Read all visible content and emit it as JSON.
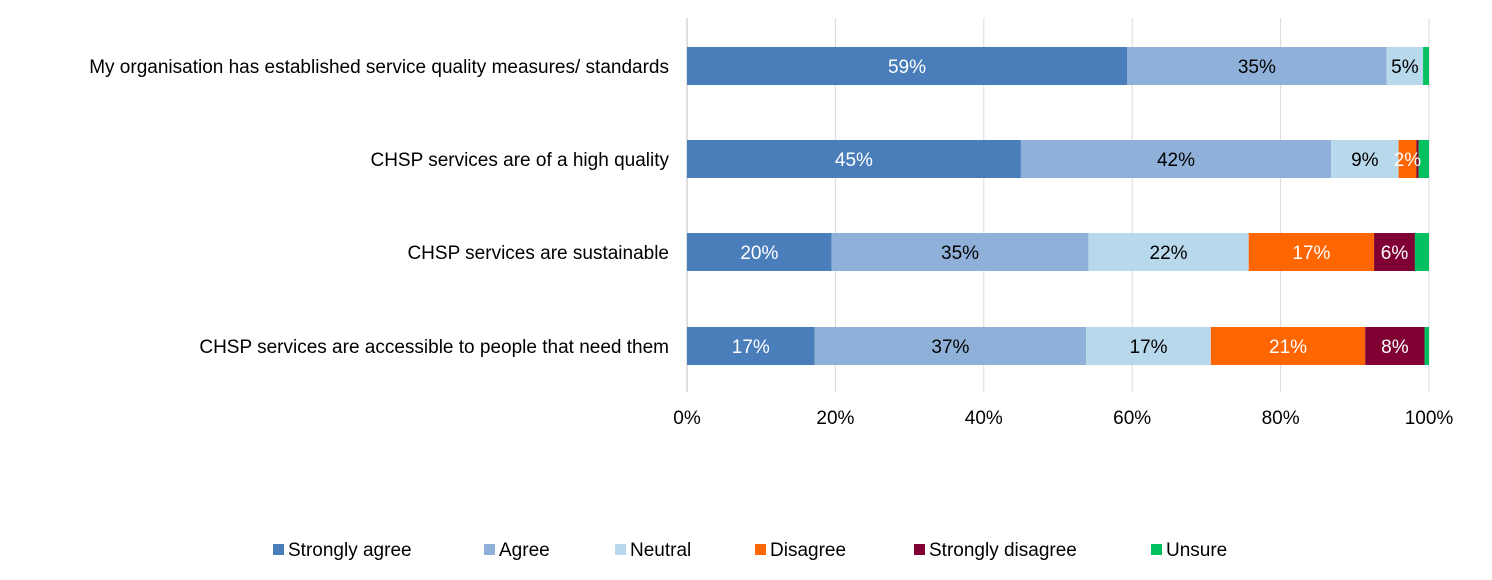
{
  "chart_data": {
    "type": "bar",
    "orientation": "horizontal",
    "stacked": true,
    "categories": [
      "My organisation has established service quality measures/ standards",
      "CHSP services are of a high quality",
      "CHSP services are sustainable",
      "CHSP services are accessible to people that need them"
    ],
    "series": [
      {
        "name": "Strongly agree",
        "color": "#4a7ebb",
        "label_color": "#ffffff",
        "values": [
          59.3,
          45.0,
          19.5,
          17.2
        ],
        "labels": [
          "59%",
          "45%",
          "20%",
          "17%"
        ]
      },
      {
        "name": "Agree",
        "color": "#8fb1d9",
        "label_color": "#000000",
        "values": [
          35.0,
          41.8,
          34.6,
          36.6
        ],
        "labels": [
          "35%",
          "42%",
          "35%",
          "37%"
        ]
      },
      {
        "name": "Neutral",
        "color": "#b8d8ec",
        "label_color": "#000000",
        "values": [
          4.9,
          9.1,
          21.6,
          16.8
        ],
        "labels": [
          "5%",
          "9%",
          "22%",
          "17%"
        ]
      },
      {
        "name": "Disagree",
        "color": "#ff6600",
        "label_color": "#ffffff",
        "values": [
          0.0,
          2.4,
          16.9,
          20.8
        ],
        "labels": [
          "",
          "2%",
          "17%",
          "21%"
        ]
      },
      {
        "name": "Strongly disagree",
        "color": "#800033",
        "label_color": "#ffffff",
        "values": [
          0.0,
          0.3,
          5.5,
          8.0
        ],
        "labels": [
          "",
          "",
          "6%",
          "8%"
        ]
      },
      {
        "name": "Unsure",
        "color": "#00c060",
        "label_color": "#ffffff",
        "values": [
          0.8,
          1.4,
          1.9,
          0.6
        ],
        "labels": [
          "",
          "",
          "",
          ""
        ]
      }
    ],
    "xlim": [
      0,
      100
    ],
    "x_ticks": [
      "0%",
      "20%",
      "40%",
      "60%",
      "80%",
      "100%"
    ],
    "x_tick_values": [
      0,
      20,
      40,
      60,
      80,
      100
    ],
    "grid": "vertical",
    "legend": "bottom",
    "title": "",
    "xlabel": "",
    "ylabel": ""
  }
}
